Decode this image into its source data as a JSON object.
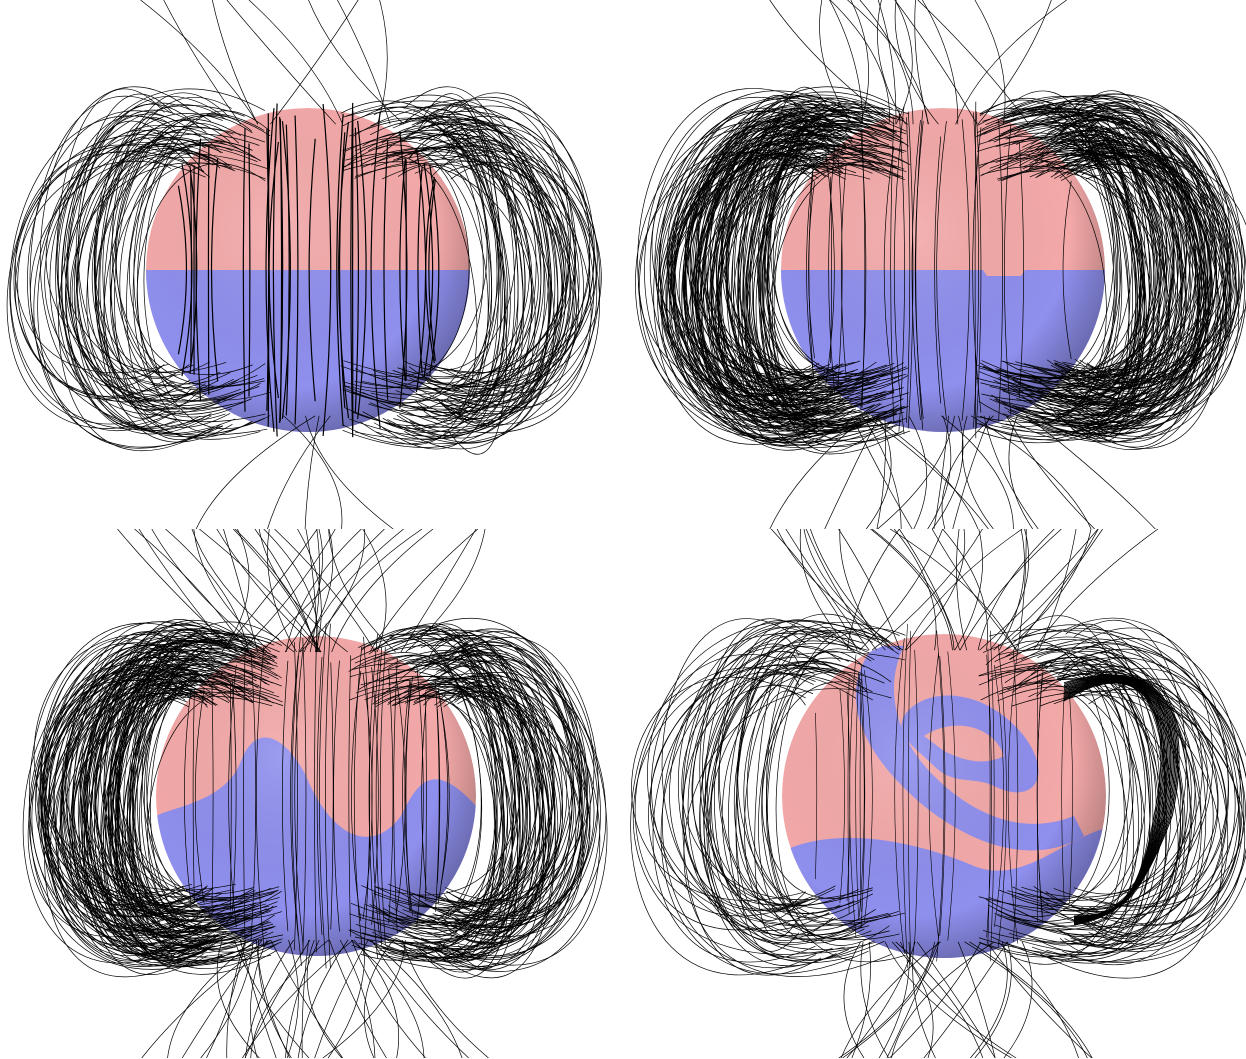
{
  "figure": {
    "panels": [
      {
        "id": "a",
        "boundary": "flat-equator"
      },
      {
        "id": "b",
        "boundary": "flat-step"
      },
      {
        "id": "c",
        "boundary": "wavy"
      },
      {
        "id": "d",
        "boundary": "spiral"
      }
    ],
    "colors": {
      "north_hemisphere": "#f4a9a9",
      "south_hemisphere": "#8f8fee",
      "field_line": "#000000",
      "background": "#ffffff"
    }
  }
}
